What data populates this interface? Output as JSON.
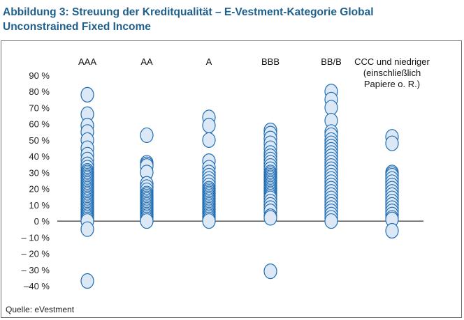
{
  "chart_data": {
    "type": "scatter",
    "title": "Abbildung 3: Streuung der Kreditqualität – E-Vestment-Kategorie Global Unconstrained Fixed Income",
    "title_lines": [
      "Abbildung 3: Streuung der Kreditqualität – E-Vestment-Kategorie Global",
      "Unconstrained Fixed Income"
    ],
    "source": "Quelle: eVestment",
    "ylim": [
      -40,
      90
    ],
    "yticks": [
      90,
      80,
      70,
      60,
      50,
      40,
      30,
      20,
      10,
      0,
      -10,
      -20,
      -30,
      -40
    ],
    "ytick_labels": [
      "90 %",
      "80 %",
      "70 %",
      "60 %",
      "50 %",
      "40 %",
      "30 %",
      "20 %",
      "10 %",
      "0 %",
      "– 10 %",
      "– 20 %",
      "– 30 %",
      "–40 %"
    ],
    "categories": [
      {
        "name": "AAA",
        "lines": [
          "AAA"
        ]
      },
      {
        "name": "AA",
        "lines": [
          "AA"
        ]
      },
      {
        "name": "A",
        "lines": [
          "A"
        ]
      },
      {
        "name": "BBB",
        "lines": [
          "BBB"
        ]
      },
      {
        "name": "BB/B",
        "lines": [
          "BB/B"
        ]
      },
      {
        "name": "CCC und niedriger (einschließlich Papiere o. R.)",
        "lines": [
          "CCC und niedriger",
          "(einschließlich",
          "Papiere o. R.)"
        ]
      }
    ],
    "series": [
      {
        "category": "AAA",
        "values": [
          78,
          66,
          59,
          55,
          50,
          45,
          41,
          38,
          35,
          33,
          31,
          30,
          29,
          28,
          27,
          26,
          25,
          24,
          23,
          22,
          21,
          20,
          19,
          18,
          17,
          16,
          15,
          14,
          13,
          12,
          11,
          10,
          9,
          8,
          7,
          6,
          5,
          4,
          3,
          2,
          1,
          0,
          -5,
          -37
        ]
      },
      {
        "category": "AA",
        "values": [
          53,
          36,
          35,
          34,
          30,
          23,
          21,
          19,
          17,
          16,
          15,
          14,
          13,
          12,
          11,
          10,
          9,
          8,
          7,
          6,
          5,
          4,
          3,
          2,
          1,
          0
        ]
      },
      {
        "category": "A",
        "values": [
          64,
          59,
          50,
          37,
          33,
          30,
          28,
          26,
          24,
          22,
          20,
          19,
          18,
          17,
          16,
          15,
          14,
          13,
          12,
          11,
          10,
          9,
          8,
          7,
          6,
          5,
          4,
          3,
          2,
          1,
          0
        ]
      },
      {
        "category": "BBB",
        "values": [
          56,
          54,
          51,
          48,
          45,
          42,
          40,
          38,
          36,
          34,
          32,
          30,
          29,
          28,
          27,
          26,
          25,
          24,
          23,
          22,
          21,
          20,
          19,
          18,
          17,
          16,
          15,
          14,
          12,
          10,
          8,
          6,
          3,
          2,
          -31
        ]
      },
      {
        "category": "BB/B",
        "values": [
          80,
          75,
          70,
          62,
          55,
          53,
          50,
          48,
          46,
          44,
          42,
          40,
          38,
          36,
          34,
          32,
          30,
          28,
          26,
          24,
          22,
          20,
          18,
          16,
          14,
          12,
          10,
          8,
          6,
          4,
          2,
          0
        ]
      },
      {
        "category": "CCC und niedriger (einschließlich Papiere o. R.)",
        "values": [
          52,
          48,
          30,
          29,
          28,
          26,
          24,
          22,
          20,
          18,
          16,
          14,
          12,
          10,
          8,
          6,
          4,
          2,
          1,
          -6
        ]
      }
    ],
    "marker_fill": "#dce8f5",
    "marker_stroke": "#1f6db3",
    "grid": false,
    "legend": "none"
  }
}
